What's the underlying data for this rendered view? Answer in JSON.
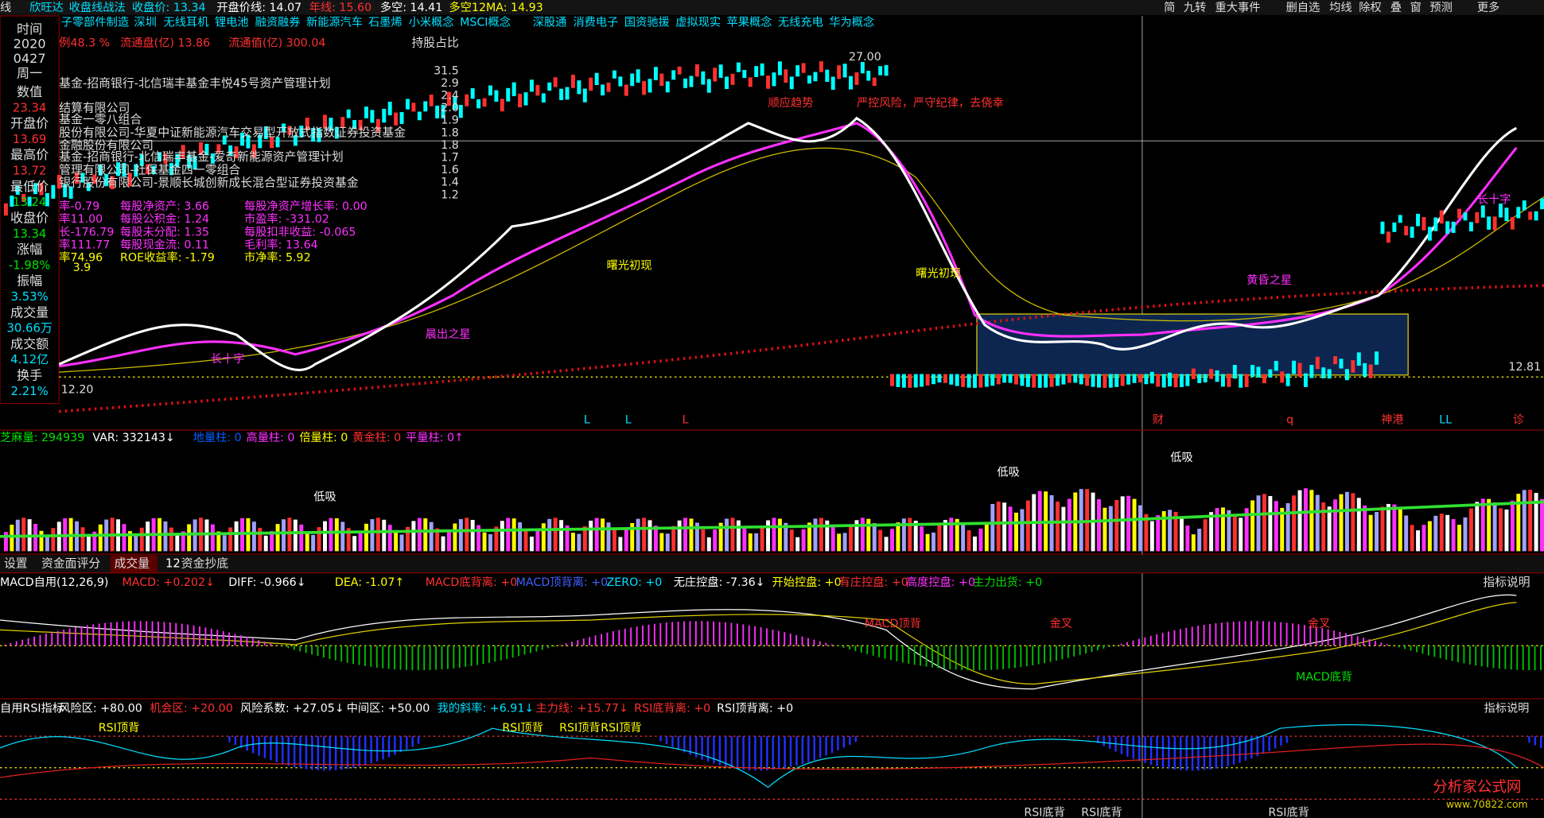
{
  "top_bar": {
    "prefix": "线",
    "stock": "欣旺达",
    "strategy": "收盘线战法",
    "close": "收盘价: 13.34",
    "open_line": "开盘价线: 14.07",
    "year_line": "年线: 15.60",
    "long_short": "多空: 14.41",
    "long_short_ma": "多空12MA: 14.93"
  },
  "toolbar_buttons": [
    "简",
    "九转",
    "重大事件",
    "删自选",
    "均线",
    "除权",
    "叠",
    "窗",
    "预测",
    "更多"
  ],
  "concepts": [
    "子零部件制造",
    "深圳",
    "无线耳机",
    "锂电池",
    "融资融券",
    "新能源汽车",
    "石墨烯",
    "小米概念",
    "MSCI概念",
    "深股通",
    "消费电子",
    "国资驰援",
    "虚拟现实",
    "苹果概念",
    "无线充电",
    "华为概念"
  ],
  "quote_panel": {
    "date": [
      "时间",
      "2020",
      "0427",
      "周一"
    ],
    "fields": [
      {
        "label": "数值",
        "value": "23.34"
      },
      {
        "label": "开盘价",
        "value": "13.69"
      },
      {
        "label": "最高价",
        "value": "13.72"
      },
      {
        "label": "最低价",
        "value": "13.24"
      },
      {
        "label": "收盘价",
        "value": "13.34"
      },
      {
        "label": "涨幅",
        "value": "-1.98%"
      },
      {
        "label": "振幅",
        "value": "3.53%"
      },
      {
        "label": "成交量",
        "value": "30.66万"
      },
      {
        "label": "成交额",
        "value": "4.12亿"
      },
      {
        "label": "换手",
        "value": "2.21%"
      }
    ]
  },
  "share_info": {
    "ratio": "例48.3 %",
    "float_shares": "流通盘(亿) 13.86",
    "float_value": "流通值(亿) 300.04",
    "holdings_title": "持股占比"
  },
  "holder_pcts": [
    "31.5",
    "2.9",
    "2.4",
    "2.0",
    "1.9",
    "1.8",
    "1.8",
    "1.7",
    "1.6",
    "1.4",
    "1.2"
  ],
  "holders": [
    "基金-招商银行-北信瑞丰基金丰悦45号资产管理计划",
    "结算有限公司",
    "基金一零八组合",
    "股份有限公司-华夏中证新能源汽车交易型开放式指数证券投资基金",
    "金融股份有限公司",
    "基金-招商银行-北信瑞丰基金-爱奇新能源资产管理计划",
    "管理有限公司-社保基金四一零组合",
    "银行股份有限公司-景顺长城创新成长混合型证券投资基金"
  ],
  "finance": [
    [
      "率-0.79",
      "每股净资产: 3.66",
      "每股净资产增长率: 0.00"
    ],
    [
      "率11.00",
      "每股公积金: 1.24",
      "市盈率: -331.02"
    ],
    [
      "长-176.79",
      "每股未分配: 1.35",
      "每股扣非收益: -0.065"
    ],
    [
      "率111.77",
      "每股现金流: 0.11",
      "毛利率: 13.64"
    ],
    [
      "率74.96",
      "ROE收益率: -1.79",
      "市净率: 5.92"
    ]
  ],
  "finance_extra": "3.9",
  "chart_annotations": {
    "high": "27.00",
    "right_price": "12.81",
    "low": "12.20",
    "trend": "顺应趋势",
    "discipline": "严控风险，严守纪律，去侥幸",
    "dawn_1": "曙光初现",
    "dawn_2": "曙光初现",
    "cross_1": "长十字",
    "cross_2": "长十字",
    "evening_star": "黄昏之星",
    "morning_star": "晨出之星"
  },
  "bottom_markers": [
    "L",
    "L",
    "L",
    "财",
    "q",
    "神港",
    "LL",
    "诊"
  ],
  "volume_header": [
    "芝麻量: 294939",
    "VAR: 332143↓",
    "地量柱: 0",
    "高量柱: 0",
    "倍量柱: 0",
    "黄金柱: 0",
    "平量柱: 0↑"
  ],
  "volume_annotations": [
    "低吸",
    "低吸",
    "低吸"
  ],
  "tabs": [
    "设置",
    "资金面评分",
    "成交量",
    "12",
    "资金抄底"
  ],
  "macd_header": [
    "MACD自用(12,26,9)",
    "MACD: +0.202↓",
    "DIFF: -0.966↓",
    "DEA: -1.07↑",
    "MACD底背离: +0",
    "MACD顶背离: +0",
    "ZERO: +0",
    "无庄控盘: -7.36↓",
    "开始控盘: +0",
    "有庄控盘: +0",
    "高度控盘: +0",
    "主力出货: +0"
  ],
  "macd_annotations": [
    "MACD顶背",
    "金叉",
    "金叉",
    "MACD底背"
  ],
  "rsi_header": [
    "自用RSI指标",
    "风险区: +80.00",
    "机会区: +20.00",
    "风险系数: +27.05↓",
    "中间区: +50.00",
    "我的斜率: +6.91↓",
    "主力线: +15.77↓",
    "RSI底背离: +0",
    "RSI顶背离: +0"
  ],
  "rsi_annotations": [
    "RSI顶背",
    "RSI顶背",
    "RSI顶背",
    "RSI顶背",
    "RSI底背",
    "RSI底背",
    "RSI底背"
  ],
  "help_button": "指标说明",
  "watermark": {
    "name": "分析家公式网",
    "url": "www.70822.com"
  }
}
